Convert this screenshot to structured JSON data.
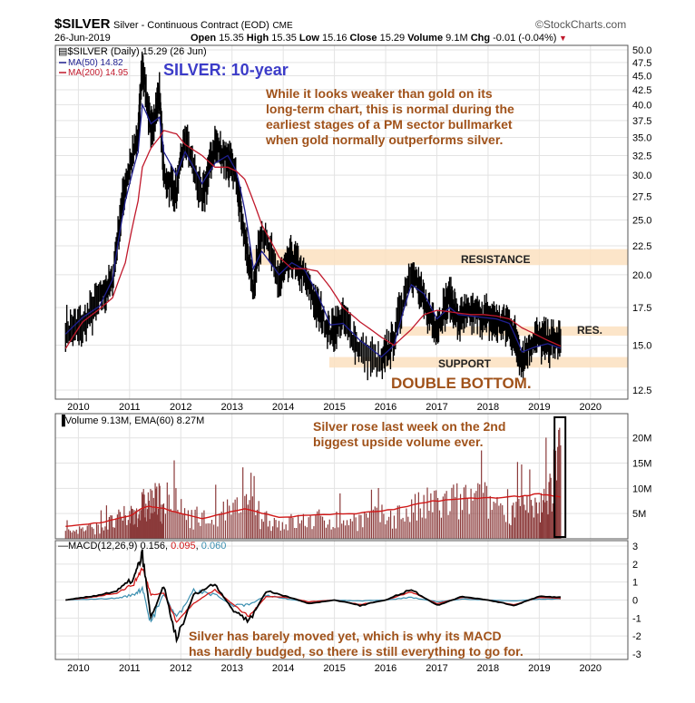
{
  "header": {
    "symbol": "$SILVER",
    "name": "Silver - Continuous Contract (EOD)",
    "exchange": "CME",
    "brand": "©StockCharts.com",
    "date": "26-Jun-2019",
    "open_label": "Open",
    "open": "15.35",
    "high_label": "High",
    "high": "15.35",
    "low_label": "Low",
    "low": "15.16",
    "close_label": "Close",
    "close": "15.29",
    "volume_label": "Volume",
    "volume": "9.1M",
    "chg_label": "Chg",
    "chg": "-0.01 (-0.04%)"
  },
  "price_panel": {
    "legend_main": "$SILVER (Daily) 15.29 (26 Jun)",
    "legend_ma50": "MA(50) 14.82",
    "legend_ma200": "MA(200) 14.95",
    "title": "SILVER: 10-year",
    "note": [
      "While it looks weaker than gold on its",
      "long-term chart, this is normal during the",
      "earliest stages of a PM sector bullmarket",
      "when gold normally outperforms silver."
    ],
    "resistance": "RESISTANCE",
    "res": "RES.",
    "support": "SUPPORT",
    "double_bottom": "DOUBLE BOTTOM.",
    "y_ticks": [
      "50.0",
      "47.5",
      "45.0",
      "42.5",
      "40.0",
      "37.5",
      "35.0",
      "32.5",
      "30.0",
      "27.5",
      "25.0",
      "22.5",
      "20.0",
      "17.5",
      "15.0",
      "12.5"
    ],
    "x_ticks": [
      "2010",
      "2011",
      "2012",
      "2013",
      "2014",
      "2015",
      "2016",
      "2017",
      "2018",
      "2019",
      "2020"
    ]
  },
  "volume_panel": {
    "legend": "Volume 9.13M, EMA(60) 8.27M",
    "note": [
      "Silver rose last week on the 2nd",
      "biggest upside volume ever."
    ],
    "y_ticks": [
      "20M",
      "15M",
      "10M",
      "5M"
    ]
  },
  "macd_panel": {
    "legend_prefix": "MACD(12,26,9)",
    "macd": "0.156",
    "signal": "0.095",
    "hist": "0.060",
    "note": [
      "Silver has barely moved yet, which is why its MACD",
      "has hardly budged, so there is still everything to go for."
    ],
    "y_ticks": [
      "3",
      "2",
      "1",
      "0",
      "-1",
      "-2",
      "-3"
    ],
    "x_ticks": [
      "2010",
      "2011",
      "2012",
      "2013",
      "2014",
      "2015",
      "2016",
      "2017",
      "2018",
      "2019",
      "2020"
    ]
  },
  "colors": {
    "price": "#000000",
    "ma50": "#1f1f8f",
    "ma200": "#c0182b",
    "band": "#fbe0c0",
    "annotation": "#a0521a",
    "title": "#3c3cc8",
    "volume_bar": "#8b3a3a",
    "volume_ema": "#d01818",
    "macd_signal": "#d01818",
    "macd_hist": "#3b8fb0"
  },
  "chart_data": [
    {
      "type": "line",
      "title": "SILVER: 10-year",
      "xlabel": "",
      "ylabel": "",
      "ylim": [
        12.5,
        50
      ],
      "y_scale": "log",
      "x": [
        "2009-10",
        "2010-02",
        "2010-06",
        "2010-09",
        "2010-12",
        "2011-03",
        "2011-04",
        "2011-06",
        "2011-08",
        "2011-09",
        "2011-12",
        "2012-02",
        "2012-06",
        "2012-09",
        "2012-12",
        "2013-02",
        "2013-04",
        "2013-06",
        "2013-08",
        "2013-12",
        "2014-03",
        "2014-06",
        "2014-09",
        "2014-12",
        "2015-03",
        "2015-07",
        "2015-12",
        "2016-03",
        "2016-07",
        "2016-10",
        "2017-01",
        "2017-04",
        "2017-06",
        "2017-09",
        "2017-12",
        "2018-03",
        "2018-06",
        "2018-09",
        "2018-12",
        "2019-03",
        "2019-06"
      ],
      "series": [
        {
          "name": "$SILVER",
          "values": [
            16,
            16.2,
            18.2,
            19.5,
            29,
            35,
            47,
            35.5,
            42,
            30,
            28,
            35,
            27,
            34,
            32,
            30,
            23,
            19,
            24,
            19.5,
            21.5,
            19.8,
            17.5,
            15.8,
            16.8,
            14.7,
            13.9,
            15.5,
            20.5,
            17.8,
            16.2,
            18.3,
            16.6,
            17.2,
            16.9,
            16.5,
            16.3,
            14.2,
            15.5,
            15.2,
            15.29
          ]
        },
        {
          "name": "MA(50)",
          "values": [
            15.7,
            16.8,
            17.6,
            19.6,
            27,
            33,
            40,
            37,
            38,
            33,
            30,
            33,
            29,
            31.5,
            32.5,
            30.5,
            26,
            20.5,
            22,
            20,
            21,
            20.4,
            18.5,
            16.3,
            16.4,
            15.3,
            14.3,
            15,
            19.2,
            18.5,
            16.7,
            17.5,
            17,
            16.9,
            16.8,
            16.7,
            16.4,
            14.6,
            14.9,
            15.1,
            14.82
          ]
        },
        {
          "name": "MA(200)",
          "values": [
            14.8,
            16.5,
            17.4,
            18.2,
            21,
            27,
            31,
            33.5,
            35,
            36,
            35.5,
            34,
            32.5,
            31,
            31,
            30.5,
            29.5,
            27,
            24.5,
            21.5,
            20.5,
            20.5,
            20.3,
            19,
            17.5,
            16.5,
            15.5,
            15,
            16,
            17,
            17.3,
            17.2,
            17.1,
            17,
            17,
            16.9,
            16.7,
            16.1,
            15.7,
            15.3,
            14.95
          ]
        }
      ],
      "bands": [
        {
          "label": "RESISTANCE",
          "range": [
            20.8,
            22.2
          ]
        },
        {
          "label": "RES.",
          "range": [
            15.6,
            16.2
          ]
        },
        {
          "label": "SUPPORT",
          "range": [
            13.7,
            14.3
          ]
        }
      ],
      "x_ticks": [
        "2010",
        "2011",
        "2012",
        "2013",
        "2014",
        "2015",
        "2016",
        "2017",
        "2018",
        "2019",
        "2020"
      ],
      "grid": true
    },
    {
      "type": "bar",
      "title": "Volume 9.13M, EMA(60) 8.27M",
      "ylim": [
        0,
        23
      ],
      "units": "M",
      "x": [
        "2009-10",
        "2010-06",
        "2011-01",
        "2011-05",
        "2011-09",
        "2012-06",
        "2013-04",
        "2013-12",
        "2014-09",
        "2015-06",
        "2016-03",
        "2016-12",
        "2017-09",
        "2018-06",
        "2019-01",
        "2019-06"
      ],
      "series": [
        {
          "name": "Volume",
          "values": [
            2,
            3,
            6,
            9,
            10,
            5,
            8,
            4,
            5,
            5,
            6,
            9,
            10,
            9,
            7,
            20
          ]
        },
        {
          "name": "EMA(60)",
          "values": [
            2.5,
            3.2,
            4.5,
            6.5,
            6,
            4,
            6,
            4.2,
            4.8,
            5,
            5.8,
            7.5,
            8,
            8.3,
            8.8,
            8.27
          ]
        }
      ]
    },
    {
      "type": "line",
      "title": "MACD(12,26,9) 0.156, 0.095, 0.060",
      "ylim": [
        -3,
        3
      ],
      "x": [
        "2009-10",
        "2010-04",
        "2010-10",
        "2011-02",
        "2011-04",
        "2011-06",
        "2011-09",
        "2011-12",
        "2012-04",
        "2012-09",
        "2013-01",
        "2013-05",
        "2013-09",
        "2014-02",
        "2014-07",
        "2015-01",
        "2015-07",
        "2016-01",
        "2016-07",
        "2017-01",
        "2017-07",
        "2018-01",
        "2018-07",
        "2019-01",
        "2019-06"
      ],
      "series": [
        {
          "name": "MACD",
          "values": [
            0,
            0.2,
            0.5,
            1.2,
            2.5,
            -1,
            0.8,
            -2.2,
            0.3,
            0.9,
            -0.5,
            -1.2,
            0.5,
            0.2,
            -0.2,
            0,
            -0.3,
            0,
            0.6,
            -0.3,
            0.2,
            0,
            -0.3,
            0.2,
            0.156
          ]
        },
        {
          "name": "Signal",
          "values": [
            0,
            0.15,
            0.4,
            0.9,
            1.8,
            0.3,
            0.4,
            -1.2,
            -0.2,
            0.6,
            -0.2,
            -0.9,
            0.2,
            0.15,
            -0.1,
            0,
            -0.25,
            0,
            0.45,
            -0.2,
            0.15,
            0,
            -0.25,
            0.15,
            0.095
          ]
        }
      ]
    }
  ]
}
